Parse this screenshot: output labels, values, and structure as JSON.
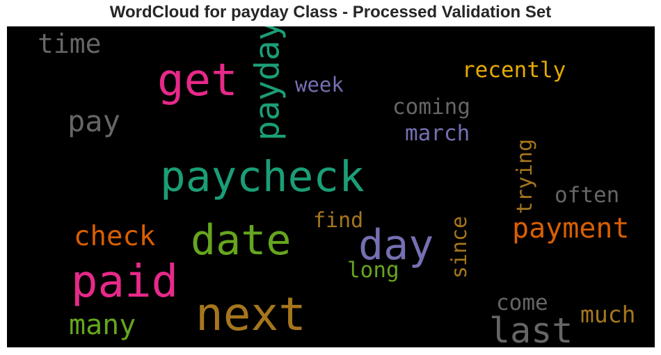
{
  "title": "WordCloud for payday Class - Processed Validation Set",
  "colors": {
    "background": "#000000",
    "pink": "#e7298a",
    "green": "#1b9e77",
    "olive": "#66a61e",
    "orange": "#d95f02",
    "purple": "#7570b3",
    "gold": "#a6761d",
    "yellow": "#e6ab02",
    "gray": "#666666"
  },
  "words": [
    {
      "id": "time",
      "text": "time",
      "color": "#666666"
    },
    {
      "id": "get",
      "text": "get",
      "color": "#e7298a"
    },
    {
      "id": "payday",
      "text": "payday",
      "color": "#1b9e77"
    },
    {
      "id": "week",
      "text": "week",
      "color": "#7570b3"
    },
    {
      "id": "recently",
      "text": "recently",
      "color": "#e6ab02"
    },
    {
      "id": "coming",
      "text": "coming",
      "color": "#666666"
    },
    {
      "id": "pay",
      "text": "pay",
      "color": "#666666"
    },
    {
      "id": "march",
      "text": "march",
      "color": "#7570b3"
    },
    {
      "id": "trying",
      "text": "trying",
      "color": "#a6761d"
    },
    {
      "id": "paycheck",
      "text": "paycheck",
      "color": "#1b9e77"
    },
    {
      "id": "often",
      "text": "often",
      "color": "#666666"
    },
    {
      "id": "find",
      "text": "find",
      "color": "#a6761d"
    },
    {
      "id": "payment",
      "text": "payment",
      "color": "#d95f02"
    },
    {
      "id": "check",
      "text": "check",
      "color": "#d95f02"
    },
    {
      "id": "date",
      "text": "date",
      "color": "#66a61e"
    },
    {
      "id": "day",
      "text": "day",
      "color": "#7570b3"
    },
    {
      "id": "since",
      "text": "since",
      "color": "#a6761d"
    },
    {
      "id": "long",
      "text": "long",
      "color": "#66a61e"
    },
    {
      "id": "paid",
      "text": "paid",
      "color": "#e7298a"
    },
    {
      "id": "next",
      "text": "next",
      "color": "#a6761d"
    },
    {
      "id": "come",
      "text": "come",
      "color": "#666666"
    },
    {
      "id": "many",
      "text": "many",
      "color": "#66a61e"
    },
    {
      "id": "last",
      "text": "last",
      "color": "#666666"
    },
    {
      "id": "much",
      "text": "much",
      "color": "#a6761d"
    }
  ]
}
